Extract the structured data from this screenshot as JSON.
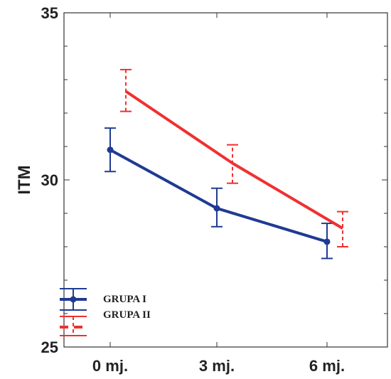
{
  "chart_data": {
    "type": "line",
    "title": "",
    "xlabel": "",
    "ylabel": "ITM",
    "categories": [
      "0 mj.",
      "3 mj.",
      "6 mj."
    ],
    "yticks": [
      "25",
      "30",
      "35"
    ],
    "ylim": [
      25,
      35
    ],
    "grid": false,
    "legend_position": "bottom-left",
    "series": [
      {
        "name": "GRUPA I",
        "color": "#1f3a93",
        "line": "solid",
        "marker": "circle",
        "values": [
          30.9,
          29.15,
          28.15
        ],
        "err_low": [
          30.25,
          28.6,
          27.65
        ],
        "err_high": [
          31.55,
          29.75,
          28.7
        ]
      },
      {
        "name": "GRUPA II",
        "color": "#f03030",
        "line": "solid",
        "marker": "none",
        "values": [
          32.65,
          30.5,
          28.55
        ],
        "err_low": [
          32.05,
          29.9,
          28.0
        ],
        "err_high": [
          33.3,
          31.05,
          29.05
        ]
      }
    ]
  }
}
